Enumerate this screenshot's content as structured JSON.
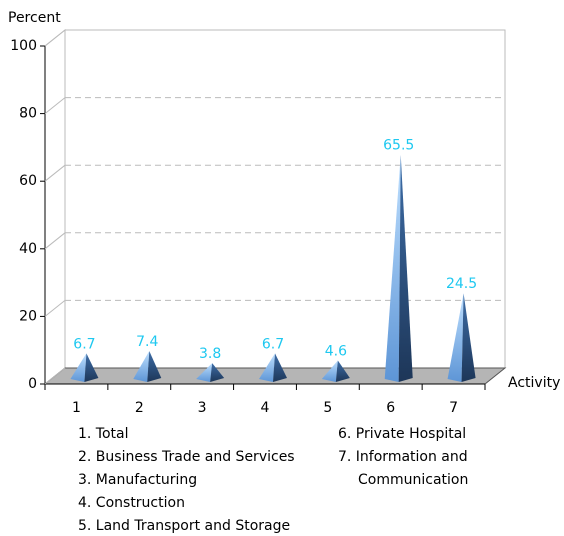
{
  "chart_data": {
    "type": "pyramid3d",
    "y_label": "Percent",
    "x_label": "Activity",
    "categories": [
      "1",
      "2",
      "3",
      "4",
      "5",
      "6",
      "7"
    ],
    "values": [
      6.7,
      7.4,
      3.8,
      6.7,
      4.6,
      65.5,
      24.5
    ],
    "ylim": [
      0,
      100
    ],
    "yticks": [
      0,
      20,
      40,
      60,
      80,
      100
    ],
    "grid": true,
    "color": "#6fa8e8",
    "label_color": "#1ec8f0",
    "notes": [
      "1. Total",
      "2. Business Trade and Services",
      "3. Manufacturing",
      "4. Construction",
      "5. Land Transport and Storage",
      "6. Private Hospital",
      "7. Information and Communication"
    ]
  }
}
